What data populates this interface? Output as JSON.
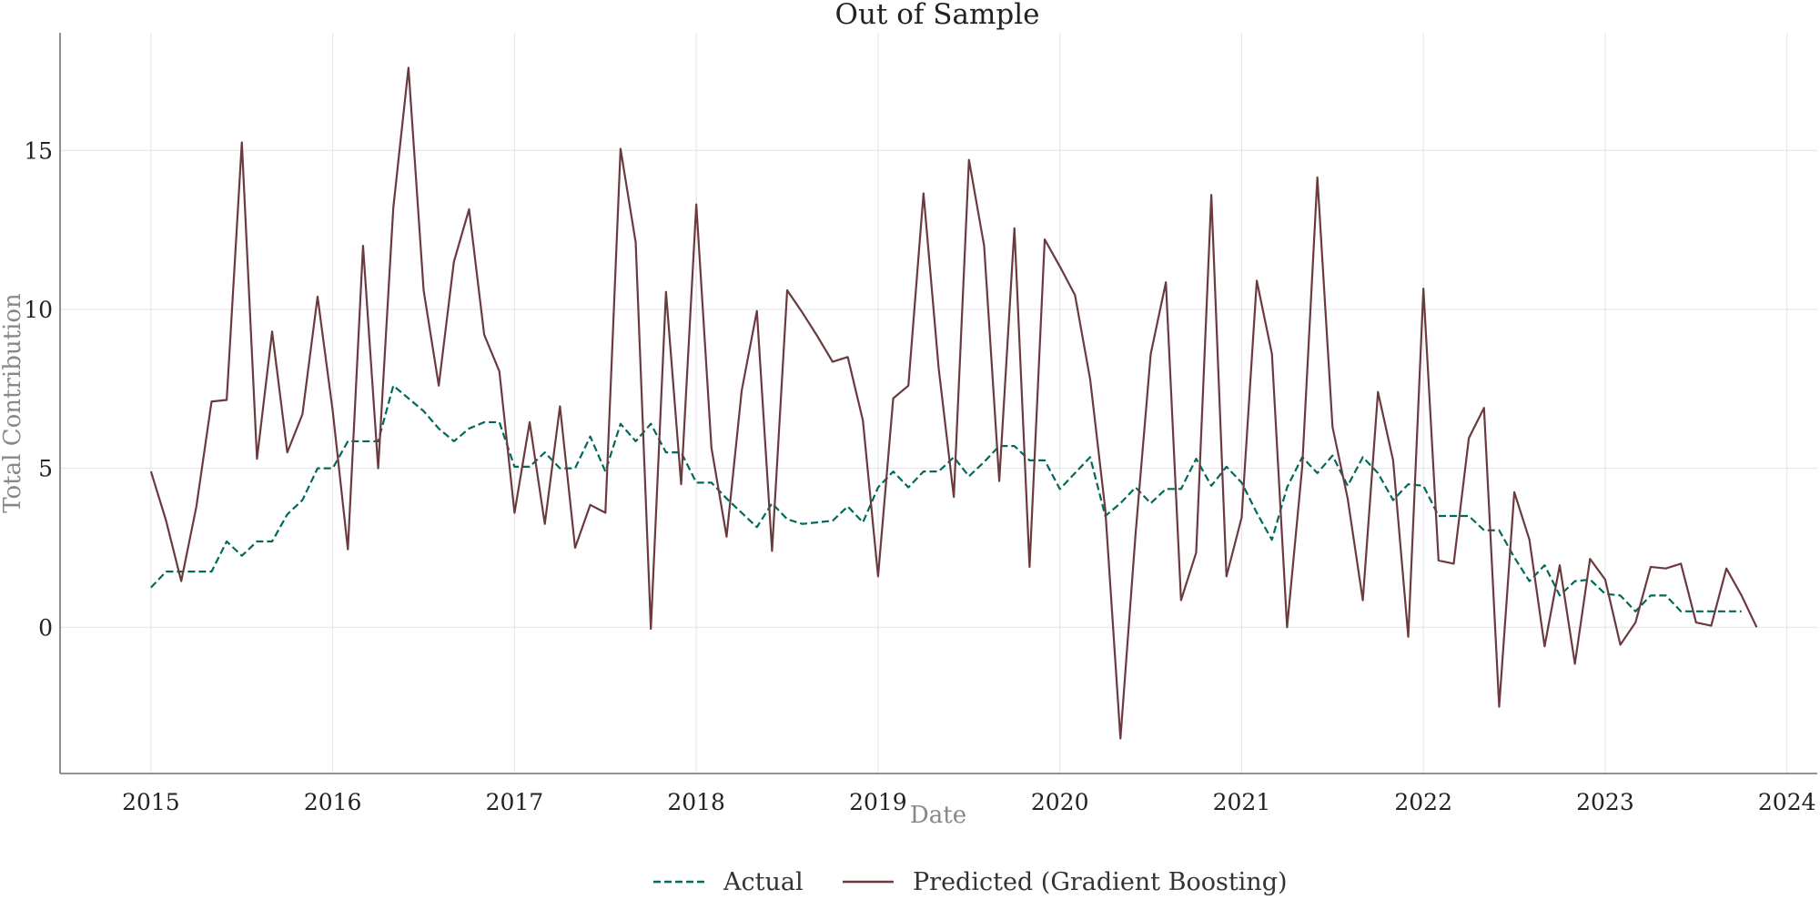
{
  "chart_data": {
    "type": "line",
    "title": "Out of Sample",
    "xlabel": "Date",
    "ylabel": "Total Contribution",
    "x_start": "2015-01",
    "x_freq": "monthly",
    "xlim": [
      "2014-07",
      "2024-03"
    ],
    "ylim": [
      -4.6,
      18.7
    ],
    "x_ticks": [
      "2015",
      "2016",
      "2017",
      "2018",
      "2019",
      "2020",
      "2021",
      "2022",
      "2023",
      "2024"
    ],
    "y_ticks": [
      0,
      5,
      10,
      15
    ],
    "grid": true,
    "legend": {
      "position": "bottom-center"
    },
    "series": [
      {
        "name": "Actual",
        "color": "#00695c",
        "style": "dashed",
        "values": [
          1.25,
          1.75,
          1.75,
          1.75,
          1.75,
          2.7,
          2.25,
          2.7,
          2.7,
          3.55,
          4.0,
          5.0,
          5.0,
          5.85,
          5.85,
          5.85,
          7.6,
          7.2,
          6.8,
          6.25,
          5.85,
          6.25,
          6.45,
          6.45,
          5.05,
          5.05,
          5.5,
          5.0,
          5.0,
          6.0,
          4.9,
          6.4,
          5.85,
          6.4,
          5.5,
          5.5,
          4.55,
          4.55,
          4.05,
          3.6,
          3.15,
          3.9,
          3.4,
          3.25,
          3.3,
          3.35,
          3.8,
          3.3,
          4.4,
          4.9,
          4.4,
          4.9,
          4.9,
          5.35,
          4.75,
          5.2,
          5.7,
          5.7,
          5.25,
          5.25,
          4.35,
          4.85,
          5.35,
          3.5,
          3.9,
          4.4,
          3.9,
          4.35,
          4.35,
          5.3,
          4.45,
          5.05,
          4.55,
          3.6,
          2.75,
          4.4,
          5.35,
          4.85,
          5.4,
          4.45,
          5.35,
          4.85,
          4.0,
          4.5,
          4.45,
          3.5,
          3.5,
          3.5,
          3.05,
          3.05,
          2.2,
          1.45,
          1.95,
          1.0,
          1.45,
          1.5,
          1.05,
          1.0,
          0.5,
          1.0,
          1.0,
          0.5,
          0.5,
          0.5,
          0.5,
          0.5
        ]
      },
      {
        "name": "Predicted (Gradient Boosting)",
        "color": "#6b3a3f",
        "style": "solid",
        "values": [
          4.9,
          3.35,
          1.45,
          3.8,
          7.1,
          7.15,
          15.25,
          5.3,
          9.3,
          5.5,
          6.7,
          10.4,
          6.8,
          2.45,
          12.0,
          5.0,
          13.2,
          17.6,
          10.6,
          7.6,
          11.5,
          13.15,
          9.2,
          8.05,
          3.6,
          6.45,
          3.25,
          6.95,
          2.5,
          3.85,
          3.6,
          15.05,
          12.1,
          -0.05,
          10.55,
          4.5,
          13.3,
          5.65,
          2.85,
          7.45,
          9.95,
          2.4,
          10.6,
          9.9,
          9.15,
          8.35,
          8.5,
          6.5,
          1.6,
          7.2,
          7.6,
          13.65,
          8.15,
          4.1,
          14.7,
          12.0,
          4.6,
          12.55,
          1.9,
          12.2,
          11.35,
          10.45,
          7.8,
          3.7,
          -3.5,
          2.95,
          8.6,
          10.85,
          0.85,
          2.35,
          13.6,
          1.6,
          3.45,
          10.9,
          8.6,
          0.0,
          5.05,
          14.15,
          6.3,
          4.05,
          0.85,
          7.4,
          5.25,
          -0.3,
          10.65,
          2.1,
          2.0,
          5.95,
          6.9,
          -2.5,
          4.25,
          2.75,
          -0.6,
          1.95,
          -1.15,
          2.15,
          1.5,
          -0.55,
          0.15,
          1.9,
          1.85,
          2.0,
          0.15,
          0.05,
          1.85,
          1.0,
          0.0
        ]
      }
    ]
  }
}
